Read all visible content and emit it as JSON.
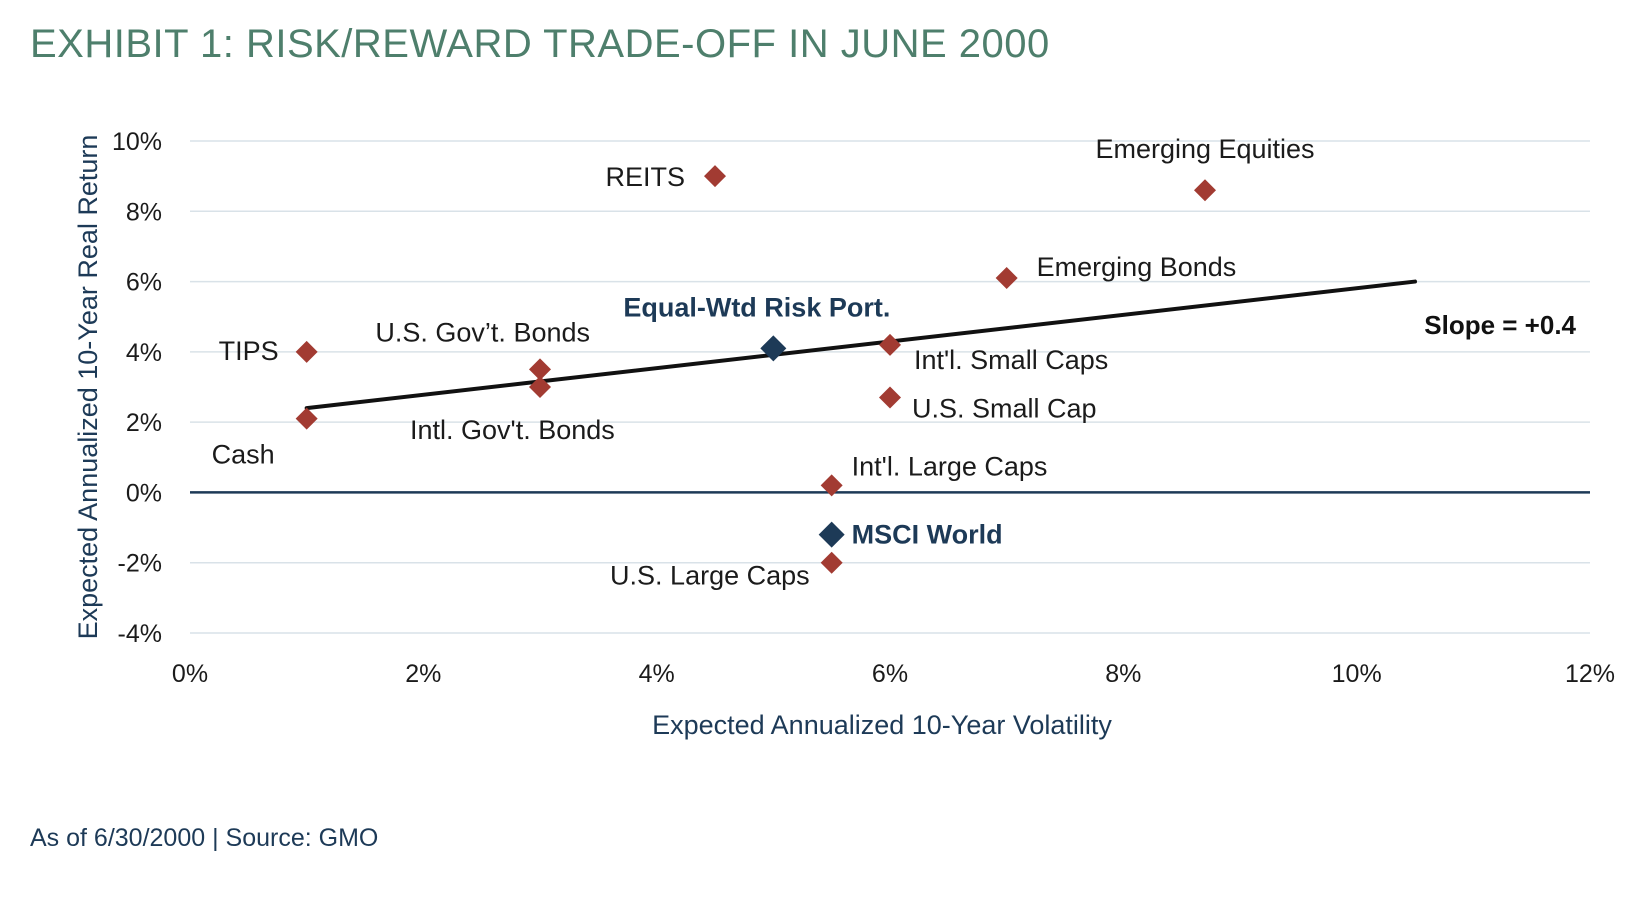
{
  "header": {
    "title": "EXHIBIT 1: RISK/REWARD TRADE-OFF IN JUNE 2000"
  },
  "footer": {
    "source": "As of 6/30/2000 | Source: GMO"
  },
  "colors": {
    "title": "#4e7f6c",
    "asset_marker": "#a23b32",
    "highlight_marker": "#1d3a57",
    "axis_label": "#1d3a57",
    "grid": "#d9e2e8",
    "zero_line": "#1d3a57",
    "trend_line": "#111111"
  },
  "chart_data": {
    "type": "scatter",
    "xlabel": "Expected Annualized 10-Year Volatility",
    "ylabel": "Expected Annualized 10-Year Real Return",
    "xlim": [
      0,
      12
    ],
    "ylim": [
      -4,
      10
    ],
    "x_ticks": [
      0,
      2,
      4,
      6,
      8,
      10,
      12
    ],
    "y_ticks": [
      -4,
      -2,
      0,
      2,
      4,
      6,
      8,
      10
    ],
    "x_tick_labels": [
      "0%",
      "2%",
      "4%",
      "6%",
      "8%",
      "10%",
      "12%"
    ],
    "y_tick_labels": [
      "-4%",
      "-2%",
      "0%",
      "2%",
      "4%",
      "6%",
      "8%",
      "10%"
    ],
    "grid": "horizontal",
    "marker": "diamond",
    "points": [
      {
        "label": "Cash",
        "x": 1.0,
        "y": 2.1,
        "highlight": false
      },
      {
        "label": "TIPS",
        "x": 1.0,
        "y": 4.0,
        "highlight": false
      },
      {
        "label": "U.S. Gov’t. Bonds",
        "x": 3.0,
        "y": 3.5,
        "highlight": false
      },
      {
        "label": "Intl. Gov't. Bonds",
        "x": 3.0,
        "y": 3.0,
        "highlight": false
      },
      {
        "label": "REITS",
        "x": 4.5,
        "y": 9.0,
        "highlight": false
      },
      {
        "label": "Equal-Wtd Risk Port.",
        "x": 5.0,
        "y": 4.1,
        "highlight": true
      },
      {
        "label": "MSCI World",
        "x": 5.5,
        "y": -1.2,
        "highlight": true
      },
      {
        "label": "Int'l. Large Caps",
        "x": 5.5,
        "y": 0.2,
        "highlight": false
      },
      {
        "label": "U.S. Large Caps",
        "x": 5.5,
        "y": -2.0,
        "highlight": false
      },
      {
        "label": "Int'l. Small Caps",
        "x": 6.0,
        "y": 4.2,
        "highlight": false
      },
      {
        "label": "U.S. Small Cap",
        "x": 6.0,
        "y": 2.7,
        "highlight": false
      },
      {
        "label": "Emerging Bonds",
        "x": 7.0,
        "y": 6.1,
        "highlight": false
      },
      {
        "label": "Emerging Equities",
        "x": 8.7,
        "y": 8.6,
        "highlight": false
      }
    ],
    "trend_line": {
      "x": [
        1.0,
        10.5
      ],
      "y": [
        2.4,
        6.0
      ],
      "label": "Slope = +0.4"
    }
  }
}
